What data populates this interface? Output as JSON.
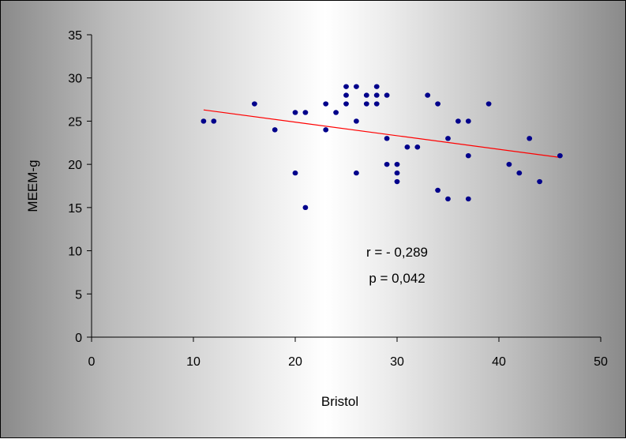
{
  "chart_data": {
    "type": "scatter",
    "title": "",
    "xlabel": "Bristol",
    "ylabel": "MEEM-g",
    "xlim": [
      0,
      50
    ],
    "ylim": [
      0,
      35
    ],
    "xticks": [
      0,
      10,
      20,
      30,
      40,
      50
    ],
    "yticks": [
      0,
      5,
      10,
      15,
      20,
      25,
      30,
      35
    ],
    "grid": false,
    "legend": "none",
    "series": [
      {
        "color": "#00008b",
        "points": [
          [
            11,
            25
          ],
          [
            12,
            25
          ],
          [
            16,
            27
          ],
          [
            18,
            24
          ],
          [
            20,
            26
          ],
          [
            20,
            19
          ],
          [
            21,
            26
          ],
          [
            21,
            15
          ],
          [
            23,
            27
          ],
          [
            23,
            24
          ],
          [
            24,
            26
          ],
          [
            25,
            29
          ],
          [
            25,
            28
          ],
          [
            25,
            27
          ],
          [
            26,
            29
          ],
          [
            26,
            25
          ],
          [
            26,
            19
          ],
          [
            27,
            28
          ],
          [
            27,
            27
          ],
          [
            28,
            29
          ],
          [
            28,
            28
          ],
          [
            28,
            27
          ],
          [
            29,
            28
          ],
          [
            29,
            23
          ],
          [
            29,
            20
          ],
          [
            30,
            20
          ],
          [
            30,
            19
          ],
          [
            30,
            18
          ],
          [
            31,
            22
          ],
          [
            32,
            22
          ],
          [
            33,
            28
          ],
          [
            34,
            27
          ],
          [
            34,
            17
          ],
          [
            35,
            23
          ],
          [
            35,
            16
          ],
          [
            36,
            25
          ],
          [
            37,
            25
          ],
          [
            37,
            21
          ],
          [
            37,
            16
          ],
          [
            39,
            27
          ],
          [
            41,
            20
          ],
          [
            42,
            19
          ],
          [
            43,
            23
          ],
          [
            44,
            18
          ],
          [
            46,
            21
          ]
        ]
      }
    ],
    "trendline": {
      "color": "#ff0000",
      "x": [
        11,
        46
      ],
      "y": [
        26.3,
        20.8
      ]
    },
    "annotations": [
      "r = - 0,289",
      "p = 0,042"
    ]
  }
}
